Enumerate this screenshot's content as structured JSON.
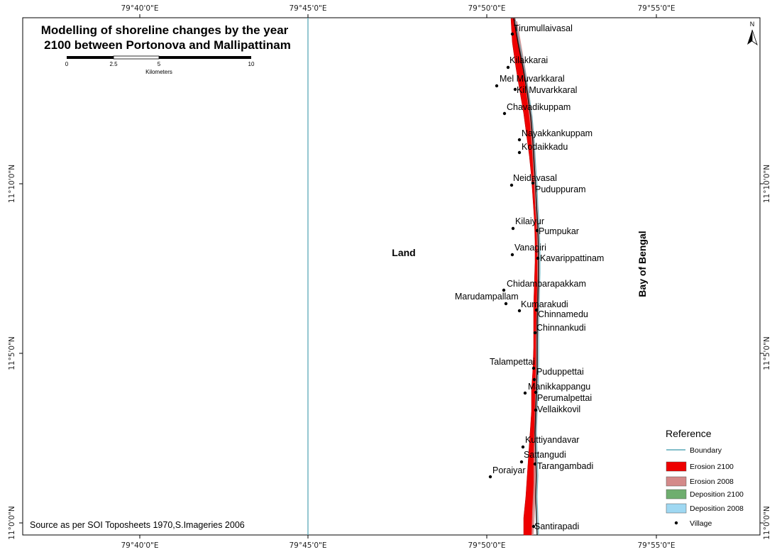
{
  "map": {
    "title_line1": "Modelling of shoreline changes by the year",
    "title_line2": "2100 between Portonova and Mallipattinam",
    "land_label": "Land",
    "sea_label": "Bay of Bengal",
    "north_label": "N",
    "source": "Source as per SOI Toposheets 1970,S.Imageries 2006",
    "scale_bar": {
      "ticks": [
        "0",
        "2.5",
        "5",
        "10"
      ],
      "unit": "Kilometers"
    },
    "longitude_ticks": [
      "79°40'0\"E",
      "79°45'0\"E",
      "79°50'0\"E",
      "79°55'0\"E"
    ],
    "latitude_ticks": [
      "11°10'0\"N",
      "11°5'0\"N",
      "11°0'0\"N"
    ],
    "villages": [
      "Tirumullaivasal",
      "Kilakkarai",
      "Mel Muvarkkaral",
      "Kil Muvarkkaral",
      "Chavadikuppam",
      "Nayakkankuppam",
      "Kodaikkadu",
      "Neidavasal",
      "Puduppuram",
      "Kilaiyur",
      "Pumpukar",
      "Vanagiri",
      "Kavarippattinam",
      "Chidambarapakkam",
      "Marudampallam",
      "Kumarakudi",
      "Chinnamedu",
      "Chinnankudi",
      "Talampettai",
      "Puduppettai",
      "Manikkappangu",
      "Perumalpettai",
      "Vellaikkovil",
      "Kuttiyandavar",
      "Sattangudi",
      "Tarangambadi",
      "Poraiyar",
      "Santirapadi"
    ],
    "legend": {
      "title": "Reference",
      "items": [
        {
          "label": "Boundary",
          "color": "#5aa9b8"
        },
        {
          "label": "Erosion 2100",
          "color": "#ee0000"
        },
        {
          "label": "Erosion 2008",
          "color": "#d48a8a"
        },
        {
          "label": "Deposition 2100",
          "color": "#6fae6f"
        },
        {
          "label": "Deposition 2008",
          "color": "#9fd8f2"
        },
        {
          "label": "Village",
          "color": "#000000"
        }
      ]
    }
  }
}
